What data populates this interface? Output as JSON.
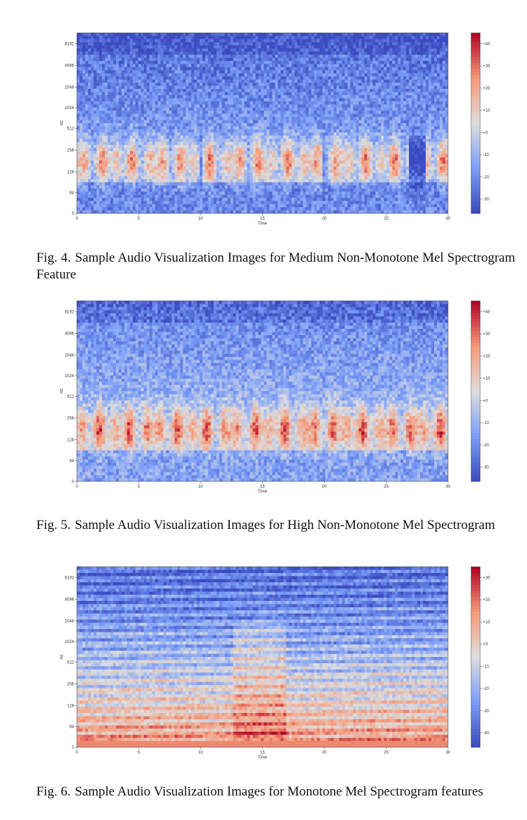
{
  "figures": [
    {
      "label": "Fig. 4.",
      "caption": "Sample Audio Visualization Images for Medium Non-Monotone Mel Spectrogram Feature",
      "chart_data": {
        "type": "heatmap",
        "xlabel": "Time",
        "ylabel": "Hz",
        "xlim": [
          0,
          30
        ],
        "x_ticks": [
          "0",
          "5",
          "10",
          "15",
          "20",
          "25",
          "30"
        ],
        "y_scale": "mel",
        "y_ticks": [
          "0",
          "64",
          "128",
          "256",
          "512",
          "1024",
          "2048",
          "4096",
          "8192"
        ],
        "colorbar_ticks": [
          "+40",
          "+30",
          "+20",
          "+10",
          "+0",
          "-10",
          "-20",
          "-30"
        ],
        "colormap": "coolwarm"
      }
    },
    {
      "label": "Fig. 5.",
      "caption": "Sample Audio Visualization Images for High Non-Monotone Mel Spectrogram",
      "chart_data": {
        "type": "heatmap",
        "xlabel": "Time",
        "ylabel": "Hz",
        "xlim": [
          0,
          30
        ],
        "x_ticks": [
          "0",
          "5",
          "10",
          "15",
          "20",
          "25",
          "30"
        ],
        "y_scale": "mel",
        "y_ticks": [
          "0",
          "64",
          "128",
          "256",
          "512",
          "1024",
          "2048",
          "4096",
          "8192"
        ],
        "colorbar_ticks": [
          "+40",
          "+30",
          "+20",
          "+10",
          "+0",
          "-10",
          "-20",
          "-30"
        ],
        "colormap": "coolwarm"
      }
    },
    {
      "label": "Fig. 6.",
      "caption": "Sample Audio Visualization Images for Monotone Mel Spectrogram features",
      "chart_data": {
        "type": "heatmap",
        "xlabel": "Time",
        "ylabel": "Hz",
        "xlim": [
          0,
          30
        ],
        "x_ticks": [
          "0",
          "5",
          "10",
          "15",
          "20",
          "25",
          "30"
        ],
        "y_scale": "mel",
        "y_ticks": [
          "0",
          "64",
          "128",
          "256",
          "512",
          "1024",
          "2048",
          "4096",
          "8192"
        ],
        "colorbar_ticks": [
          "+30",
          "+20",
          "+10",
          "+0",
          "-10",
          "-20",
          "-30",
          "-40"
        ],
        "colormap": "coolwarm"
      }
    }
  ]
}
